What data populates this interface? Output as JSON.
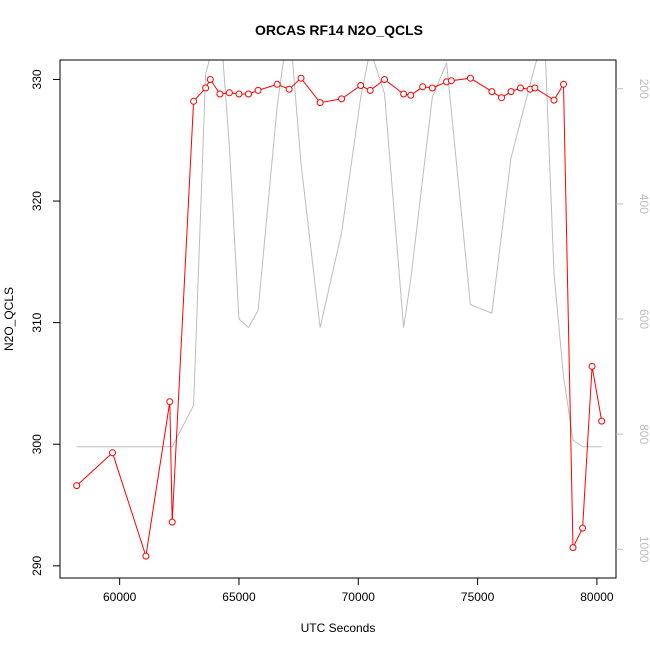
{
  "chart_data": {
    "type": "line",
    "title": "ORCAS RF14 N2O_QCLS",
    "xlabel": "UTC Seconds",
    "ylabel": "N2O_QCLS",
    "xlim": [
      57500,
      80800
    ],
    "ylim": [
      289,
      331.6
    ],
    "y2lim": [
      1050,
      150
    ],
    "y2_reversed": true,
    "x_ticks": [
      60000,
      65000,
      70000,
      75000,
      80000
    ],
    "y_ticks": [
      290,
      300,
      310,
      320,
      330
    ],
    "y2_ticks": [
      200,
      400,
      600,
      800,
      1000
    ],
    "grid": false,
    "legend": "none",
    "series": [
      {
        "color": "#ff0000",
        "marker": "open-circle",
        "axis": "left",
        "x": [
          58200,
          59700,
          61100,
          62100,
          62200,
          63100,
          63600,
          63800,
          64200,
          64600,
          65000,
          65400,
          65800,
          66600,
          67100,
          67600,
          68400,
          69300,
          70100,
          70500,
          71100,
          71900,
          72200,
          72700,
          73100,
          73700,
          73900,
          74700,
          75600,
          76000,
          76400,
          76800,
          77200,
          77400,
          78200,
          78600,
          79000,
          79400,
          79800,
          80200
        ],
        "y": [
          296.6,
          299.3,
          290.8,
          303.5,
          293.6,
          328.2,
          329.3,
          330.0,
          328.8,
          328.9,
          328.8,
          328.8,
          329.1,
          329.6,
          329.2,
          330.1,
          328.1,
          328.4,
          329.5,
          329.1,
          330.0,
          328.8,
          328.7,
          329.4,
          329.3,
          329.8,
          329.9,
          330.1,
          329.0,
          328.5,
          329.0,
          329.3,
          329.2,
          329.3,
          328.3,
          329.6,
          291.5,
          293.1,
          306.4,
          301.9
        ]
      },
      {
        "color": "#bdbdbd",
        "marker": "none",
        "axis": "right",
        "x": [
          58200,
          59700,
          61100,
          62100,
          62200,
          63100,
          63600,
          64200,
          64600,
          65000,
          65400,
          65800,
          66600,
          67100,
          67600,
          68400,
          69300,
          70100,
          70500,
          71100,
          71900,
          72200,
          73100,
          73700,
          74700,
          75600,
          76400,
          77200,
          77800,
          78200,
          78600,
          79000,
          79400,
          79800,
          80200
        ],
        "y": [
          822,
          822,
          822,
          822,
          822,
          750,
          175,
          78,
          300,
          600,
          615,
          585,
          230,
          78,
          330,
          615,
          450,
          215,
          132,
          208,
          615,
          530,
          215,
          155,
          575,
          590,
          320,
          192,
          100,
          520,
          700,
          810,
          822,
          822,
          822
        ]
      }
    ]
  }
}
